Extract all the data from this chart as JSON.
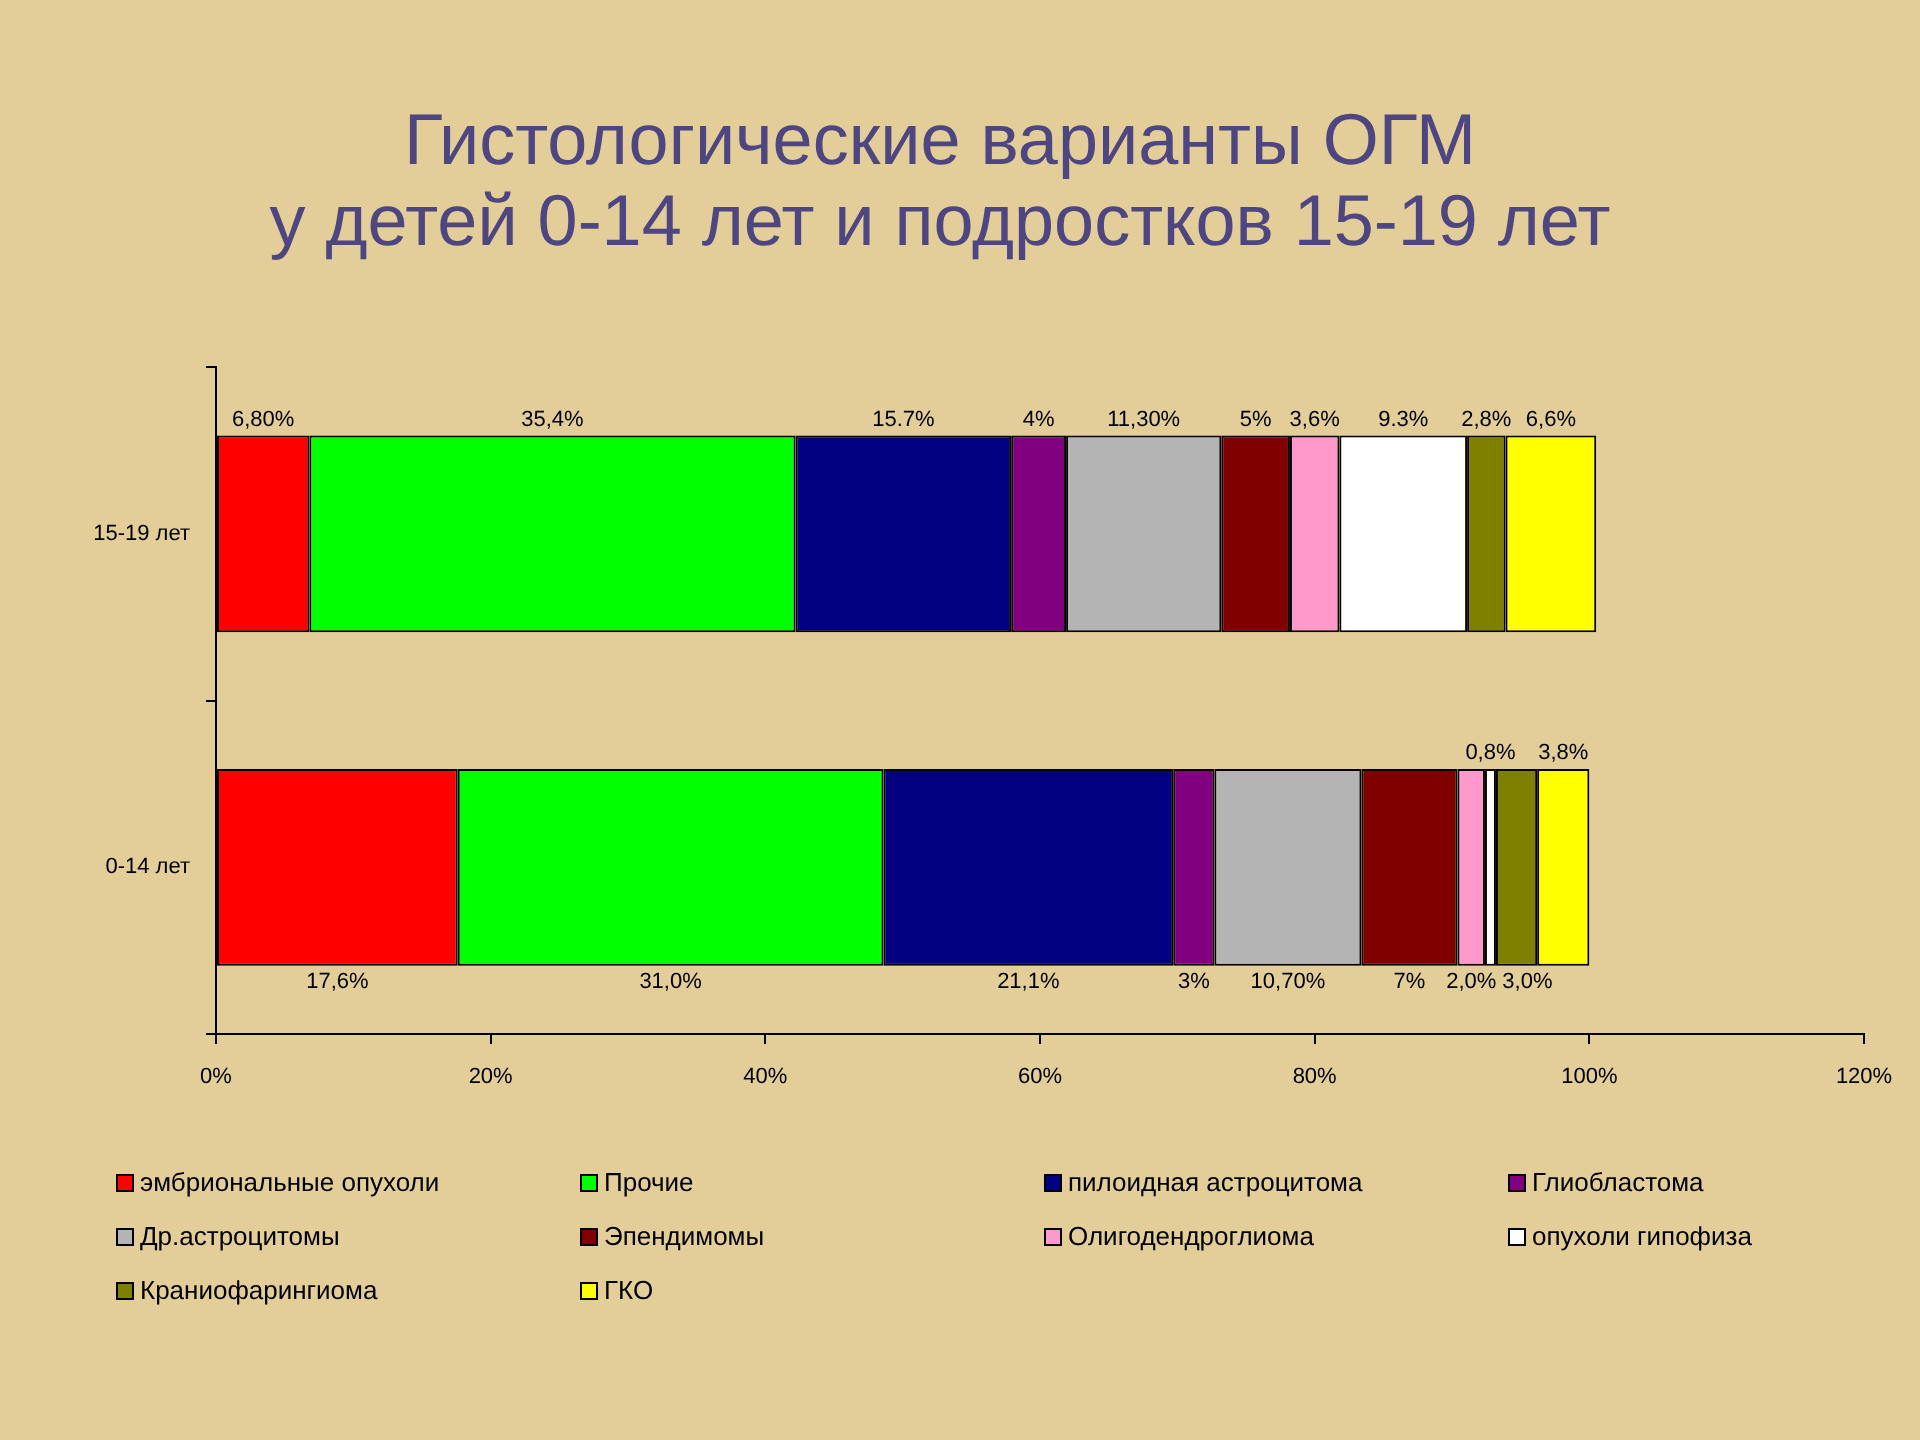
{
  "chart_data": {
    "type": "bar",
    "title": "Гистологические варианты ОГМ\nу детей 0-14 лет и подростков 15-19 лет",
    "orientation": "horizontal",
    "stacked": true,
    "categories": [
      "15-19 лет",
      "0-14 лет"
    ],
    "series": [
      {
        "name": "эмбриональные опухоли",
        "color": "#ff0000",
        "values": [
          6.8,
          17.6
        ],
        "value_labels": [
          "6,80%",
          "17,6%"
        ]
      },
      {
        "name": "Прочие",
        "color": "#00ff00",
        "values": [
          35.4,
          31.0
        ],
        "value_labels": [
          "35,4%",
          "31,0%"
        ]
      },
      {
        "name": "пилоидная астроцитома",
        "color": "#000080",
        "values": [
          15.7,
          21.1
        ],
        "value_labels": [
          "15.7%",
          "21,1%"
        ]
      },
      {
        "name": "Глиобластома",
        "color": "#800080",
        "values": [
          4,
          3
        ],
        "value_labels": [
          "4%",
          "3%"
        ]
      },
      {
        "name": "Др.астроцитомы",
        "color": "#b4b4b4",
        "values": [
          11.3,
          10.7
        ],
        "value_labels": [
          "11,30%",
          "10,70%"
        ]
      },
      {
        "name": "Эпендимомы",
        "color": "#800000",
        "values": [
          5,
          7
        ],
        "value_labels": [
          "5%",
          "7%"
        ]
      },
      {
        "name": "Олигодендроглиома",
        "color": "#ff99cc",
        "values": [
          3.6,
          2.0
        ],
        "value_labels": [
          "3,6%",
          "2,0%"
        ]
      },
      {
        "name": "опухоли гипофиза",
        "color": "#ffffff",
        "values": [
          9.3,
          0.8
        ],
        "value_labels": [
          "9.3%",
          "0,8%"
        ]
      },
      {
        "name": "Краниофарингиома",
        "color": "#808000",
        "values": [
          2.8,
          3.0
        ],
        "value_labels": [
          "2,8%",
          "3,0%"
        ]
      },
      {
        "name": "ГКО",
        "color": "#ffff00",
        "values": [
          6.6,
          3.8
        ],
        "value_labels": [
          "6,6%",
          "3,8%"
        ]
      }
    ],
    "xlim": [
      0,
      120
    ],
    "xticks": [
      {
        "value": 0,
        "label": "0%"
      },
      {
        "value": 20,
        "label": "20%"
      },
      {
        "value": 40,
        "label": "40%"
      },
      {
        "value": 60,
        "label": "60%"
      },
      {
        "value": 80,
        "label": "80%"
      },
      {
        "value": 100,
        "label": "100%"
      },
      {
        "value": 120,
        "label": "120%"
      }
    ],
    "legend": "bottom"
  }
}
